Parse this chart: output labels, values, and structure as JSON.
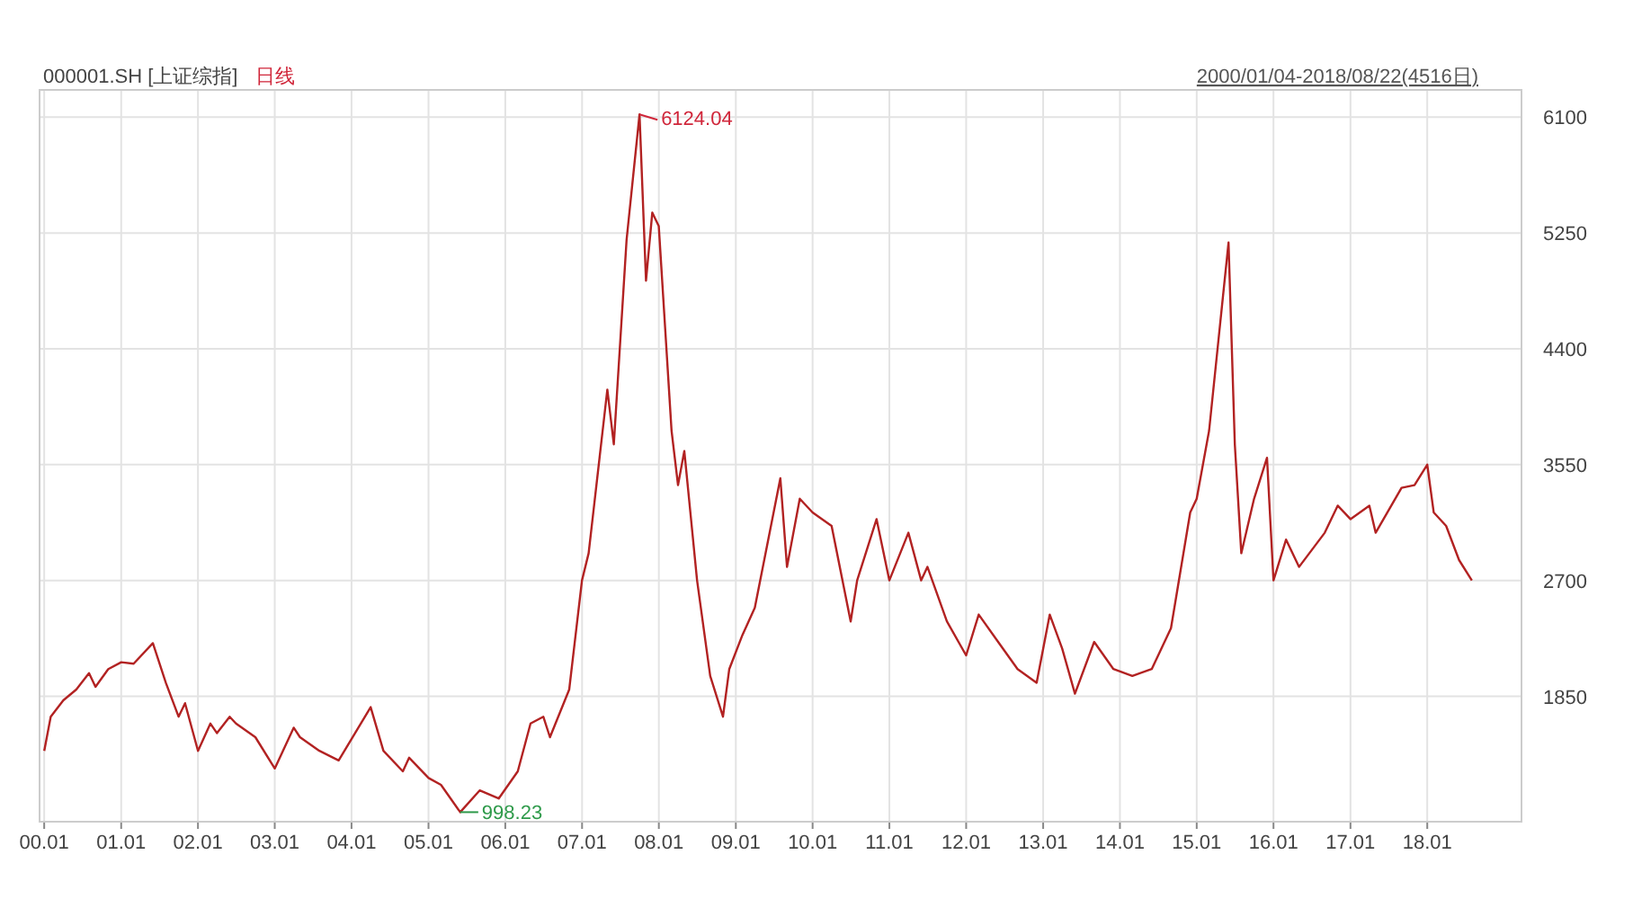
{
  "chart_data": {
    "type": "line",
    "title": "000001.SH [上证综指]",
    "subtitle": "日线",
    "x": [
      "2000-01",
      "2000-02",
      "2000-04",
      "2000-06",
      "2000-08",
      "2000-09",
      "2000-11",
      "2001-01",
      "2001-03",
      "2001-06",
      "2001-08",
      "2001-10",
      "2001-11",
      "2002-01",
      "2002-03",
      "2002-04",
      "2002-06",
      "2002-07",
      "2002-10",
      "2003-01",
      "2003-04",
      "2003-05",
      "2003-08",
      "2003-11",
      "2004-04",
      "2004-06",
      "2004-09",
      "2004-10",
      "2005-01",
      "2005-03",
      "2005-06",
      "2005-09",
      "2005-12",
      "2006-03",
      "2006-05",
      "2006-07",
      "2006-08",
      "2006-11",
      "2007-01",
      "2007-02",
      "2007-05",
      "2007-06",
      "2007-08",
      "2007-10",
      "2007-11",
      "2007-12",
      "2008-01",
      "2008-03",
      "2008-04",
      "2008-05",
      "2008-07",
      "2008-09",
      "2008-11",
      "2008-12",
      "2009-02",
      "2009-04",
      "2009-08",
      "2009-09",
      "2009-11",
      "2010-01",
      "2010-04",
      "2010-07",
      "2010-08",
      "2010-11",
      "2011-01",
      "2011-04",
      "2011-06",
      "2011-07",
      "2011-10",
      "2012-01",
      "2012-03",
      "2012-06",
      "2012-09",
      "2012-12",
      "2013-02",
      "2013-04",
      "2013-06",
      "2013-09",
      "2013-12",
      "2014-03",
      "2014-06",
      "2014-09",
      "2014-12",
      "2015-01",
      "2015-03",
      "2015-06",
      "2015-07",
      "2015-08",
      "2015-10",
      "2015-12",
      "2016-01",
      "2016-03",
      "2016-05",
      "2016-09",
      "2016-11",
      "2017-01",
      "2017-04",
      "2017-05",
      "2017-09",
      "2017-11",
      "2018-01",
      "2018-02",
      "2018-04",
      "2018-06",
      "2018-08"
    ],
    "series": [
      {
        "color": "#b22222",
        "values": [
          1450,
          1700,
          1820,
          1900,
          2020,
          1920,
          2050,
          2100,
          2090,
          2240,
          1950,
          1700,
          1800,
          1450,
          1650,
          1580,
          1700,
          1650,
          1550,
          1320,
          1620,
          1550,
          1450,
          1380,
          1770,
          1450,
          1300,
          1400,
          1250,
          1200,
          1000,
          1160,
          1100,
          1300,
          1650,
          1700,
          1550,
          1900,
          2700,
          2900,
          4100,
          3700,
          5200,
          6120,
          4900,
          5400,
          5300,
          3800,
          3400,
          3650,
          2700,
          2000,
          1700,
          2050,
          2300,
          2500,
          3450,
          2800,
          3300,
          3200,
          3100,
          2400,
          2700,
          3150,
          2700,
          3050,
          2700,
          2800,
          2400,
          2150,
          2450,
          2250,
          2050,
          1950,
          2450,
          2200,
          1870,
          2250,
          2050,
          2000,
          2050,
          2350,
          3200,
          3300,
          3800,
          5180,
          3700,
          2900,
          3300,
          3600,
          2700,
          3000,
          2800,
          3050,
          3250,
          3150,
          3250,
          3050,
          3380,
          3400,
          3550,
          3200,
          3100,
          2850,
          2700
        ]
      }
    ],
    "xlim": [
      "1999-12-10",
      "2019-03-25"
    ],
    "ylim": [
      930,
      6300
    ],
    "xticks": [
      {
        "value": "2000-01",
        "label": "00.01"
      },
      {
        "value": "2001-01",
        "label": "01.01"
      },
      {
        "value": "2002-01",
        "label": "02.01"
      },
      {
        "value": "2003-01",
        "label": "03.01"
      },
      {
        "value": "2004-01",
        "label": "04.01"
      },
      {
        "value": "2005-01",
        "label": "05.01"
      },
      {
        "value": "2006-01",
        "label": "06.01"
      },
      {
        "value": "2007-01",
        "label": "07.01"
      },
      {
        "value": "2008-01",
        "label": "08.01"
      },
      {
        "value": "2009-01",
        "label": "09.01"
      },
      {
        "value": "2010-01",
        "label": "10.01"
      },
      {
        "value": "2011-01",
        "label": "11.01"
      },
      {
        "value": "2012-01",
        "label": "12.01"
      },
      {
        "value": "2013-01",
        "label": "13.01"
      },
      {
        "value": "2014-01",
        "label": "14.01"
      },
      {
        "value": "2015-01",
        "label": "15.01"
      },
      {
        "value": "2016-01",
        "label": "16.01"
      },
      {
        "value": "2017-01",
        "label": "17.01"
      },
      {
        "value": "2018-01",
        "label": "18.01"
      }
    ],
    "yticks": [
      1850,
      2700,
      3550,
      4400,
      5250,
      6100
    ],
    "grid": true,
    "annotations": [
      {
        "text": "6124.04",
        "x": "2007-10",
        "y": 6120
      },
      {
        "text": "998.23",
        "x": "2005-06",
        "y": 1000
      },
      "2000/01/04-2018/08/22(4516日)"
    ]
  }
}
